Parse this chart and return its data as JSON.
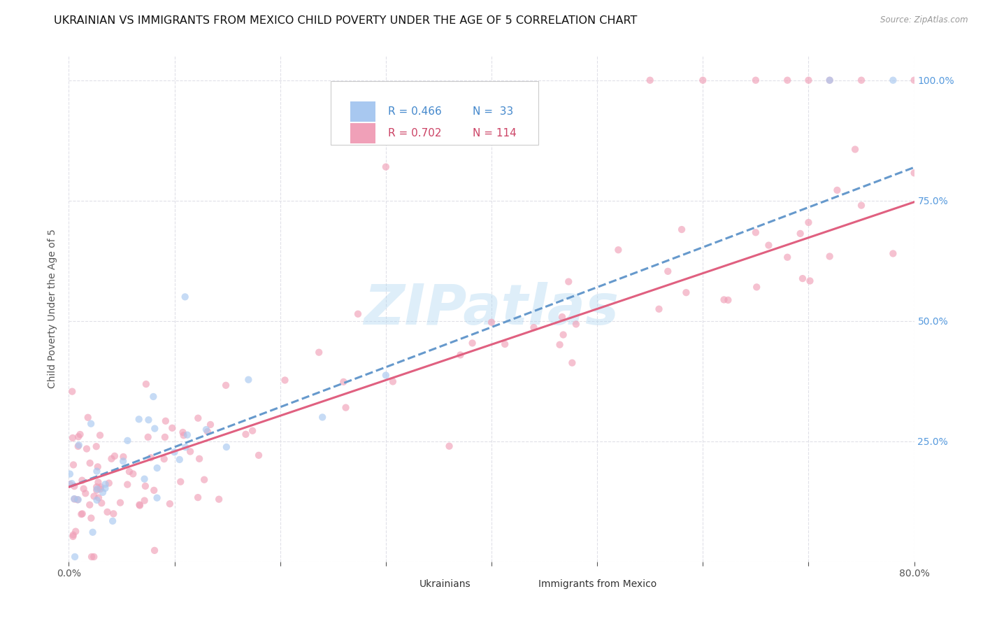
{
  "title": "UKRAINIAN VS IMMIGRANTS FROM MEXICO CHILD POVERTY UNDER THE AGE OF 5 CORRELATION CHART",
  "source": "Source: ZipAtlas.com",
  "ylabel": "Child Poverty Under the Age of 5",
  "xmin": 0.0,
  "xmax": 0.8,
  "ymin": 0.0,
  "ymax": 1.05,
  "color_ukrainian": "#a8c8f0",
  "color_mexico": "#f0a0b8",
  "color_line_ukrainian": "#6699cc",
  "color_line_mexico": "#e06080",
  "watermark": "ZIPatlas",
  "background_color": "#ffffff",
  "grid_color": "#e0e0e8",
  "title_fontsize": 11.5,
  "axis_label_fontsize": 10,
  "tick_fontsize": 10,
  "scatter_size": 55,
  "scatter_alpha": 0.65,
  "line_width": 2.2,
  "legend_r1": "R = 0.466",
  "legend_n1": "N =  33",
  "legend_r2": "R = 0.702",
  "legend_n2": "N = 114",
  "right_yticks": [
    0.25,
    0.5,
    0.75,
    1.0
  ],
  "right_ytick_labels": [
    "25.0%",
    "50.0%",
    "75.0%",
    "100.0%"
  ]
}
